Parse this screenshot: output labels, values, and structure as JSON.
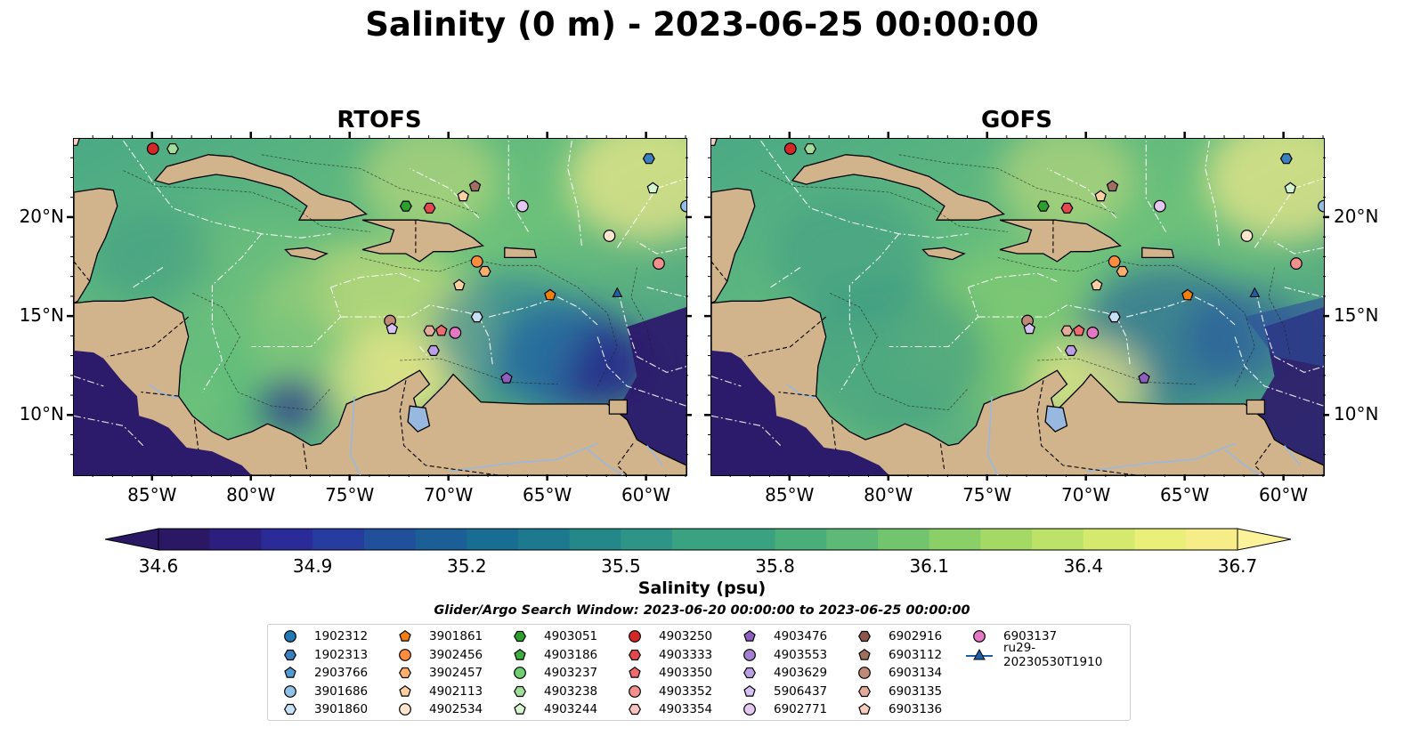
{
  "title": "Salinity (0 m) - 2023-06-25 00:00:00",
  "panels": [
    {
      "title": "RTOFS"
    },
    {
      "title": "GOFS"
    }
  ],
  "map": {
    "lon_range": [
      -89,
      -58
    ],
    "lat_range": [
      7,
      24
    ],
    "lon_ticks": [
      "85°W",
      "80°W",
      "75°W",
      "70°W",
      "65°W",
      "60°W"
    ],
    "lat_ticks": [
      "20°N",
      "15°N",
      "10°N"
    ],
    "colors": {
      "land": "#d2b48c",
      "deep_low": "#2c1a6b",
      "lake": "#99b8df"
    }
  },
  "colorbar": {
    "label": "Salinity (psu)",
    "ticks": [
      "34.6",
      "34.9",
      "35.2",
      "35.5",
      "35.8",
      "36.1",
      "36.4",
      "36.7"
    ],
    "range": [
      34.6,
      36.7
    ],
    "colormap": "haline",
    "extend": "both"
  },
  "search_window": "Glider/Argo Search Window: 2023-06-20 00:00:00 to 2023-06-25 00:00:00",
  "legend": [
    {
      "label": "1902312",
      "marker": "circle",
      "color": "#1f77b4"
    },
    {
      "label": "1902313",
      "marker": "hexagon",
      "color": "#3a7fc0"
    },
    {
      "label": "2903766",
      "marker": "pentagon",
      "color": "#4f9bd6"
    },
    {
      "label": "3901686",
      "marker": "circle",
      "color": "#8fc1e9"
    },
    {
      "label": "3901860",
      "marker": "hexagon",
      "color": "#c6e0f5"
    },
    {
      "label": "3901861",
      "marker": "pentagon",
      "color": "#f07f0e"
    },
    {
      "label": "3902456",
      "marker": "circle",
      "color": "#fd8d3c"
    },
    {
      "label": "3902457",
      "marker": "hexagon",
      "color": "#fdae6b"
    },
    {
      "label": "4902113",
      "marker": "pentagon",
      "color": "#fdd0a2"
    },
    {
      "label": "4902534",
      "marker": "circle",
      "color": "#fee6ce"
    },
    {
      "label": "4903051",
      "marker": "hexagon",
      "color": "#2ca02c"
    },
    {
      "label": "4903186",
      "marker": "pentagon",
      "color": "#3cae3c"
    },
    {
      "label": "4903237",
      "marker": "circle",
      "color": "#6fcf6f"
    },
    {
      "label": "4903238",
      "marker": "hexagon",
      "color": "#a1dd9b"
    },
    {
      "label": "4903244",
      "marker": "pentagon",
      "color": "#d4f5cf"
    },
    {
      "label": "4903250",
      "marker": "circle",
      "color": "#d62728"
    },
    {
      "label": "4903333",
      "marker": "hexagon",
      "color": "#e4474c"
    },
    {
      "label": "4903350",
      "marker": "pentagon",
      "color": "#ee6b6e"
    },
    {
      "label": "4903352",
      "marker": "circle",
      "color": "#f3908d"
    },
    {
      "label": "4903354",
      "marker": "hexagon",
      "color": "#fbc3c0"
    },
    {
      "label": "4903476",
      "marker": "pentagon",
      "color": "#8f5fbf"
    },
    {
      "label": "4903553",
      "marker": "circle",
      "color": "#a57fd3"
    },
    {
      "label": "4903629",
      "marker": "hexagon",
      "color": "#bb9ee3"
    },
    {
      "label": "5906437",
      "marker": "pentagon",
      "color": "#d6c2f2"
    },
    {
      "label": "6902771",
      "marker": "circle",
      "color": "#e4c8f2"
    },
    {
      "label": "6902916",
      "marker": "hexagon",
      "color": "#8c564b"
    },
    {
      "label": "6903112",
      "marker": "pentagon",
      "color": "#a0705f"
    },
    {
      "label": "6903134",
      "marker": "circle",
      "color": "#c08a78"
    },
    {
      "label": "6903135",
      "marker": "hexagon",
      "color": "#e3ab99"
    },
    {
      "label": "6903136",
      "marker": "pentagon",
      "color": "#f7cdbd"
    },
    {
      "label": "6903137",
      "marker": "circle",
      "color": "#e377c2"
    },
    {
      "label": "ru29-20230530T1910",
      "marker": "triangle-line",
      "color": "#1f5fa8"
    }
  ],
  "markers": [
    {
      "id": "4903250",
      "lon": -85,
      "lat": 23.5
    },
    {
      "id": "4903238",
      "lon": -84,
      "lat": 23.5
    },
    {
      "id": "1902313",
      "lon": -59.9,
      "lat": 23.0
    },
    {
      "id": "4903244",
      "lon": -59.7,
      "lat": 21.5
    },
    {
      "id": "6903112",
      "lon": -68.7,
      "lat": 21.6
    },
    {
      "id": "4902113",
      "lon": -69.3,
      "lat": 21.1
    },
    {
      "id": "4903051",
      "lon": -72.2,
      "lat": 20.6
    },
    {
      "id": "4903333",
      "lon": -71.0,
      "lat": 20.5
    },
    {
      "id": "6902771",
      "lon": -66.3,
      "lat": 20.6
    },
    {
      "id": "3901686",
      "lon": -58.0,
      "lat": 20.6
    },
    {
      "id": "4902534",
      "lon": -61.9,
      "lat": 19.1
    },
    {
      "id": "4903352",
      "lon": -59.4,
      "lat": 17.7
    },
    {
      "id": "3902456",
      "lon": -68.6,
      "lat": 17.8
    },
    {
      "id": "3902457",
      "lon": -68.2,
      "lat": 17.3
    },
    {
      "id": "4902113b",
      "lon": -69.5,
      "lat": 16.6
    },
    {
      "id": "3901861",
      "lon": -64.9,
      "lat": 16.1
    },
    {
      "id": "3901860",
      "lon": -68.6,
      "lat": 15.0
    },
    {
      "id": "6903134",
      "lon": -73.0,
      "lat": 14.8
    },
    {
      "id": "5906437",
      "lon": -72.9,
      "lat": 14.4
    },
    {
      "id": "6903135",
      "lon": -71.0,
      "lat": 14.3
    },
    {
      "id": "4903350",
      "lon": -70.4,
      "lat": 14.3
    },
    {
      "id": "6903137",
      "lon": -69.7,
      "lat": 14.2
    },
    {
      "id": "4903629",
      "lon": -70.8,
      "lat": 13.3
    },
    {
      "id": "4903476",
      "lon": -67.1,
      "lat": 11.9
    },
    {
      "id": "6903136",
      "lon": -89.0,
      "lat": 23.9
    }
  ]
}
